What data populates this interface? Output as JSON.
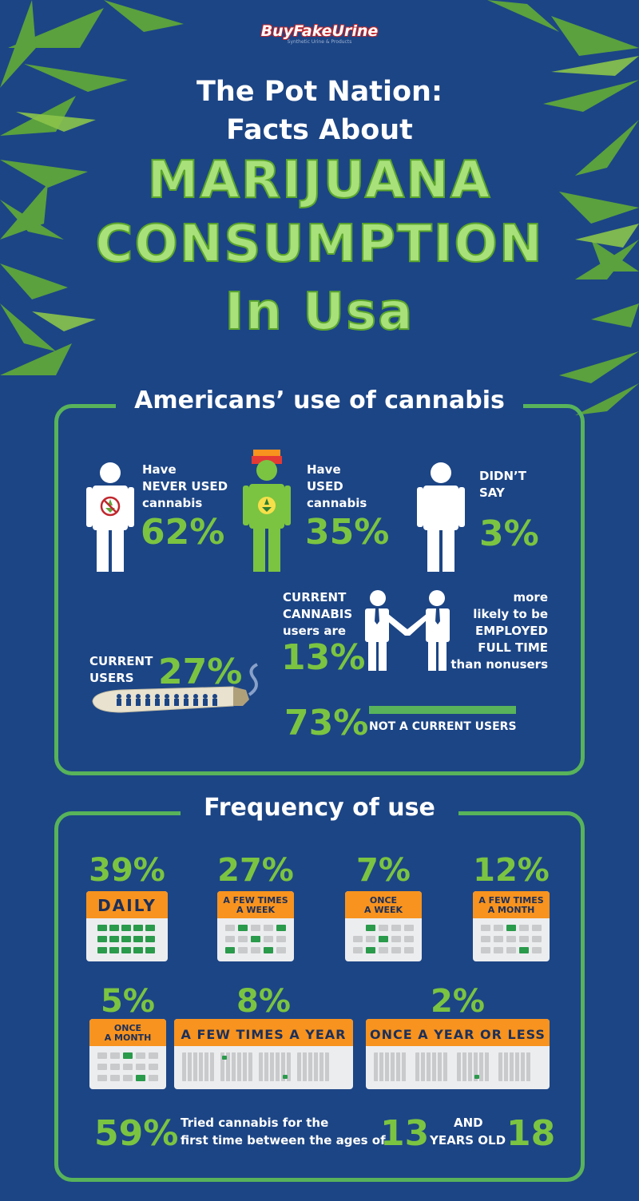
{
  "logo": {
    "brand": "BuyFakeUrine",
    "tagline": "Synthetic Urine & Products"
  },
  "title": {
    "line1": "The Pot Nation:",
    "line2": "Facts About",
    "line3": "MARIJUANA",
    "line4": "CONSUMPTION",
    "line5": "In Usa"
  },
  "section1": {
    "heading": "Americans’ use of cannabis",
    "never_used": {
      "l1": "Have",
      "l2": "NEVER USED",
      "l3": "cannabis",
      "pct": "62%"
    },
    "used": {
      "l1": "Have",
      "l2": "USED",
      "l3": "cannabis",
      "pct": "35%"
    },
    "didnt_say": {
      "l1": "DIDN’T",
      "l2": "SAY",
      "pct": "3%"
    },
    "employed": {
      "l1": "CURRENT",
      "l2": "CANNABIS",
      "l3": "users are",
      "pct": "13%",
      "r1": "more",
      "r2": "likely to be",
      "r3": "EMPLOYED",
      "r4": "FULL TIME",
      "r5": "than nonusers"
    },
    "current": {
      "l1": "CURRENT",
      "l2": "USERS",
      "pct": "27%"
    },
    "not_current": {
      "pct": "73%",
      "label": "NOT A CURRENT USERS"
    }
  },
  "section2": {
    "heading": "Frequency of use",
    "row1": [
      {
        "pct": "39%",
        "label": "DAILY"
      },
      {
        "pct": "27%",
        "label1": "A FEW TIMES",
        "label2": "A WEEK"
      },
      {
        "pct": "7%",
        "label1": "ONCE",
        "label2": "A WEEK"
      },
      {
        "pct": "12%",
        "label1": "A FEW TIMES",
        "label2": "A MONTH"
      }
    ],
    "row2": [
      {
        "pct": "5%",
        "label1": "ONCE",
        "label2": "A MONTH"
      },
      {
        "pct": "8%",
        "label": "A FEW TIMES A YEAR"
      },
      {
        "pct": "2%",
        "label": "ONCE A YEAR OR LESS"
      }
    ],
    "tried": {
      "pct": "59%",
      "t1": "Tried cannabis for the",
      "t2": "first time between the ages of",
      "age1": "13",
      "and": "AND",
      "years": "YEARS OLD",
      "age2": "18"
    }
  },
  "colors": {
    "background": "#1c4585",
    "accent_green": "#7bc441",
    "frame_green": "#58b35a",
    "calendar_orange": "#f7931e"
  }
}
